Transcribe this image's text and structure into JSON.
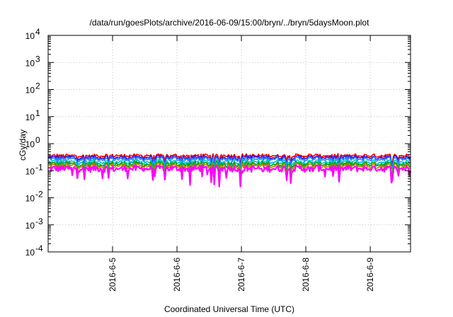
{
  "chart_data": {
    "type": "line",
    "title": "/data/run/goesPlots/archive/2016-06-09/15:00/bryn/../bryn/5daysMoon.plot",
    "xlabel": "Coordinated Universal Time (UTC)",
    "ylabel": "cGy/day",
    "yscale": "log",
    "ylim": [
      0.0001,
      10000
    ],
    "yticks": [
      {
        "value": 0.0001,
        "base": "10",
        "exp": "-4"
      },
      {
        "value": 0.001,
        "base": "10",
        "exp": "-3"
      },
      {
        "value": 0.01,
        "base": "10",
        "exp": "-2"
      },
      {
        "value": 0.1,
        "base": "10",
        "exp": "-1"
      },
      {
        "value": 1,
        "base": "10",
        "exp": "0"
      },
      {
        "value": 10,
        "base": "10",
        "exp": "1"
      },
      {
        "value": 100,
        "base": "10",
        "exp": "2"
      },
      {
        "value": 1000,
        "base": "10",
        "exp": "3"
      },
      {
        "value": 10000,
        "base": "10",
        "exp": "4"
      }
    ],
    "xlim": [
      "2016-06-04T00:00",
      "2016-06-09T15:00"
    ],
    "xticks": [
      {
        "value": "2016-06-05T00:00",
        "label": "2016-6-5"
      },
      {
        "value": "2016-06-06T00:00",
        "label": "2016-6-6"
      },
      {
        "value": "2016-06-07T00:00",
        "label": "2016-6-7"
      },
      {
        "value": "2016-06-08T00:00",
        "label": "2016-6-8"
      },
      {
        "value": "2016-06-09T00:00",
        "label": "2016-6-9"
      }
    ],
    "grid": true,
    "legend": "none",
    "series_style": [
      {
        "color": "#ff0000",
        "level": 0.36
      },
      {
        "color": "#1a1aff",
        "level": 0.31
      },
      {
        "color": "#2f7fff",
        "level": 0.27
      },
      {
        "color": "#00c8c8",
        "level": 0.21
      },
      {
        "color": "#00a000",
        "level": 0.175
      },
      {
        "color": "#b8860b",
        "level": 0.15
      },
      {
        "color": "#ff00ff",
        "level": 0.12
      }
    ]
  }
}
